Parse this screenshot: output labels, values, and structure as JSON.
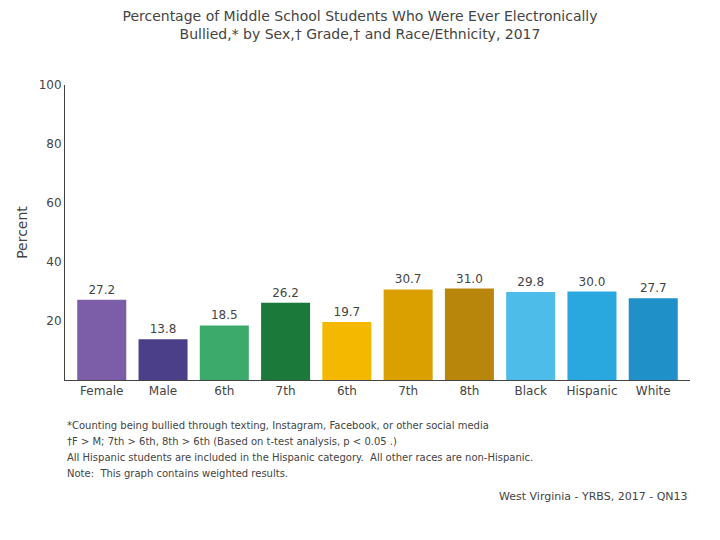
{
  "chart_data": {
    "type": "bar",
    "title": "Percentage of Middle School Students Who Were Ever Electronically\nBullied,* by Sex,† Grade,† and Race/Ethnicity, 2017",
    "ylabel": "Percent",
    "categories": [
      "Female",
      "Male",
      "6th",
      "7th",
      "6th",
      "7th",
      "8th",
      "Black",
      "Hispanic",
      "White"
    ],
    "values": [
      27.2,
      13.8,
      18.5,
      26.2,
      19.7,
      30.7,
      31.0,
      29.8,
      30.0,
      27.7
    ],
    "value_labels": [
      "27.2",
      "13.8",
      "18.5",
      "26.2",
      "19.7",
      "30.7",
      "31.0",
      "29.8",
      "30.0",
      "27.7"
    ],
    "colors": [
      "#7B5EA7",
      "#4B3F8A",
      "#3BAA6A",
      "#1B7A3A",
      "#F5B800",
      "#DAA000",
      "#B8860B",
      "#4DBCE9",
      "#29A8E0",
      "#2090C8"
    ],
    "ylim": [
      0,
      100
    ],
    "yticks": [
      20,
      40,
      60,
      80,
      100
    ],
    "grid": false,
    "data_labels": true,
    "annotations": [
      "*Counting being bullied through texting, Instagram, Facebook, or other social media",
      "†F > M; 7th > 6th, 8th > 6th (Based on t-test analysis, p < 0.05 .)",
      "All Hispanic students are included in the Hispanic category.  All other races are non-Hispanic.",
      "Note:  This graph contains weighted results."
    ],
    "source": "West Virginia - YRBS, 2017 - QN13"
  }
}
